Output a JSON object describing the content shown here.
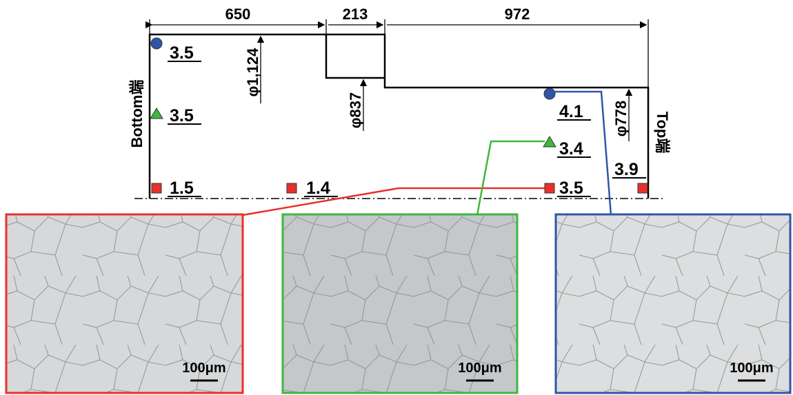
{
  "dimensions": {
    "lengths": [
      "650",
      "213",
      "972"
    ],
    "diameters": [
      "φ1,124",
      "φ837",
      "φ778"
    ]
  },
  "ends": {
    "bottom": "Bottom端",
    "top": "Top端"
  },
  "measurements": [
    "3.5",
    "3.5",
    "1.5",
    "1.4",
    "4.1",
    "3.4",
    "3.5",
    "3.9"
  ],
  "micrographs": [
    {
      "scale": "100μm"
    },
    {
      "scale": "100μm"
    },
    {
      "scale": "100μm"
    }
  ]
}
